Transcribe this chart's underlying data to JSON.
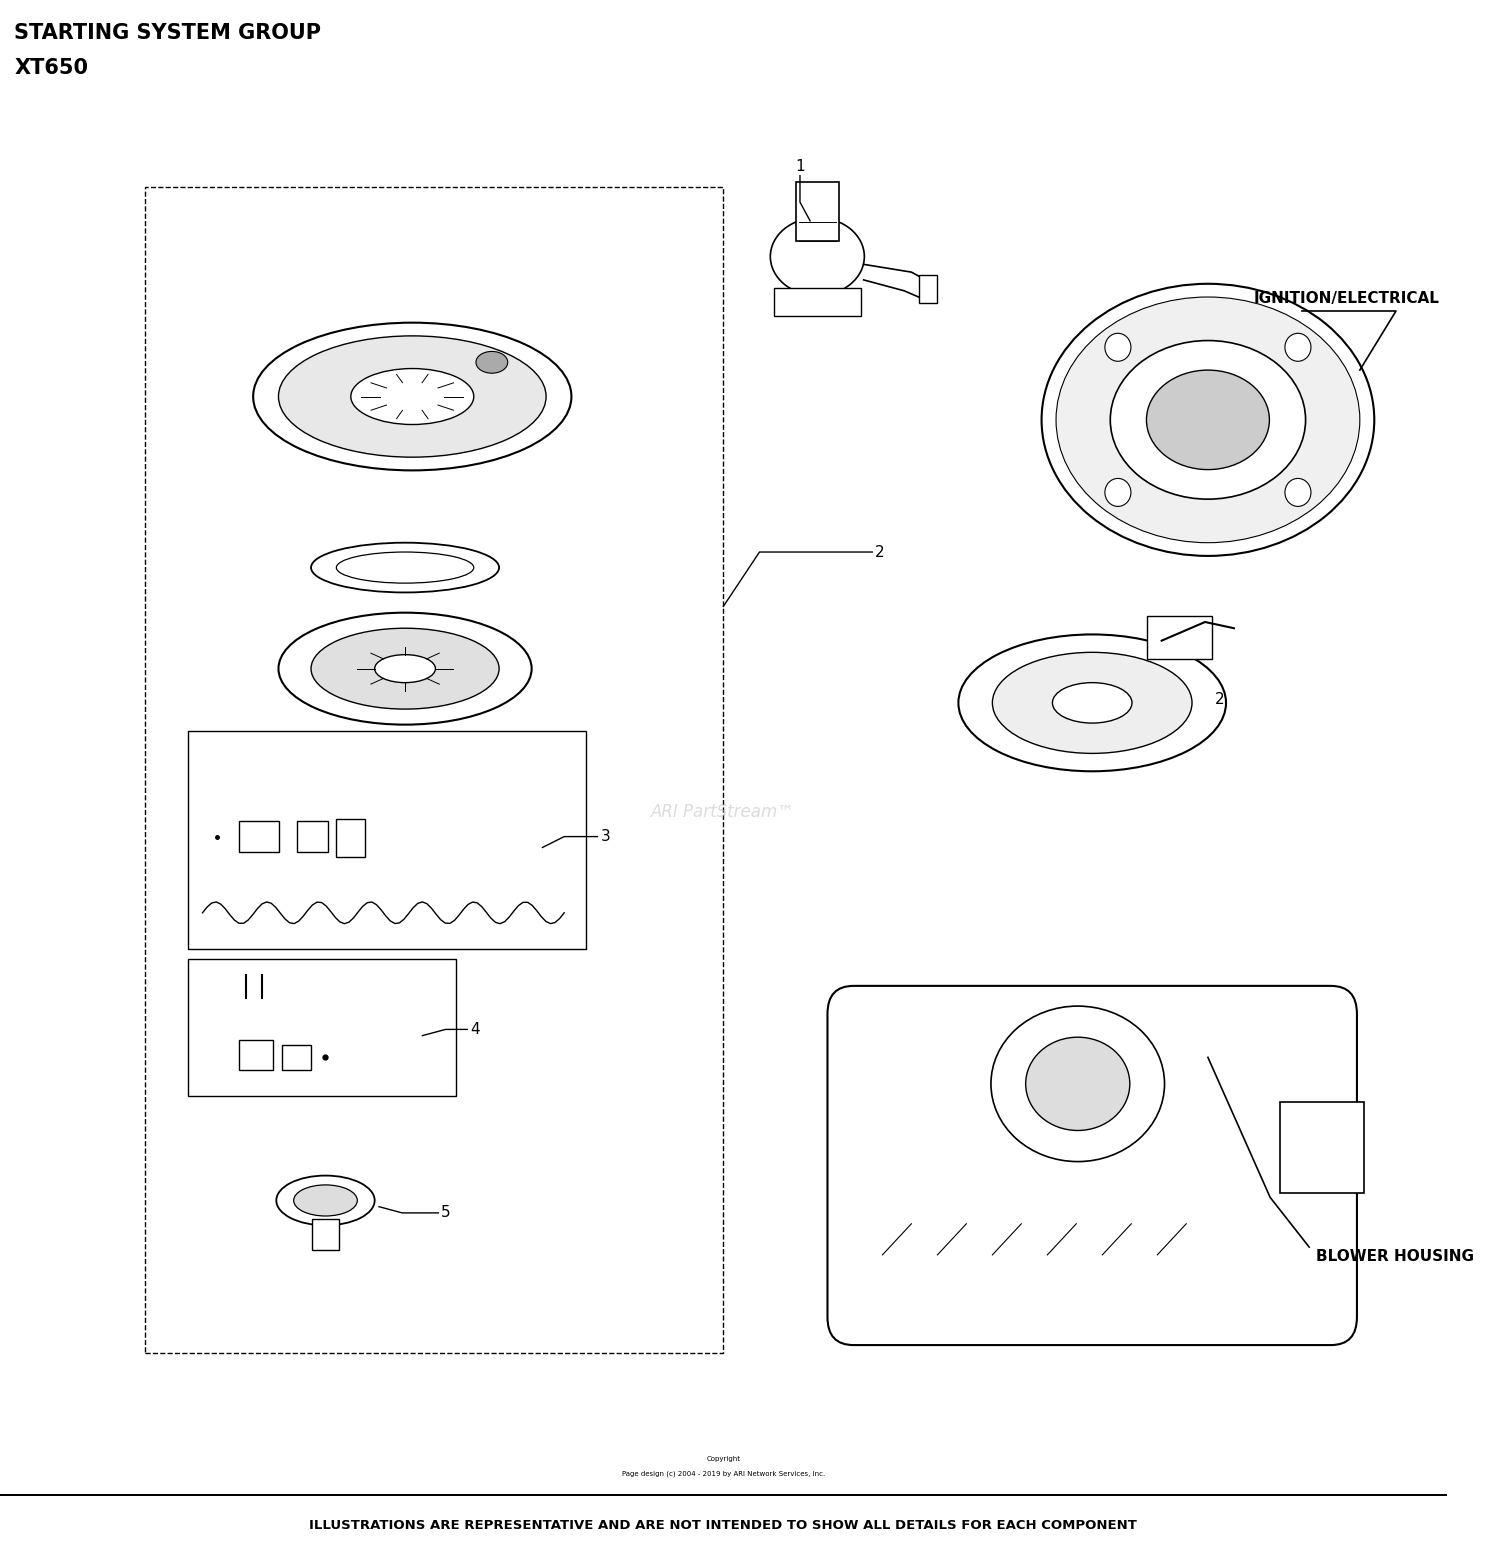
{
  "title_line1": "STARTING SYSTEM GROUP",
  "title_line2": "XT650",
  "footer_line1": "Copyright",
  "footer_line2": "Page design (c) 2004 - 2019 by ARI Network Services, Inc.",
  "footer_line3": "ILLUSTRATIONS ARE REPRESENTATIVE AND ARE NOT INTENDED TO SHOW ALL DETAILS FOR EACH COMPONENT",
  "watermark": "ARI PartStream™",
  "label_ignition": "IGNITION/ELECTRICAL",
  "label_blower": "BLOWER HOUSING",
  "bg_color": "#ffffff",
  "text_color": "#000000"
}
